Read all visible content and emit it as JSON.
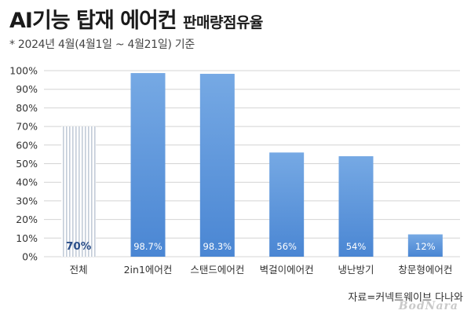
{
  "header": {
    "title_main": "AI기능 탑재 에어컨",
    "title_sub": "판매량점유율",
    "period": "* 2024년 4월(4월1일 ~ 4월21일) 기준"
  },
  "source": "자료=커넥트웨이브 다나와",
  "watermark": "BodNara",
  "colors": {
    "bar_top": "#76a9e4",
    "bar_bottom": "#4a86d3",
    "total_bar_stripe": "#c3ccd8",
    "total_label": "#2b4f8a",
    "grid": "#d4d4d4",
    "axis_text": "#333333"
  },
  "chart_data": {
    "type": "bar",
    "title": "AI기능 탑재 에어컨 판매량점유율",
    "categories": [
      "전체",
      "2in1에어컨",
      "스탠드에어컨",
      "벽걸이에어컨",
      "냉난방기",
      "창문형에어컨"
    ],
    "values": [
      70,
      98.7,
      98.3,
      56,
      54,
      12
    ],
    "value_labels": [
      "70%",
      "98.7%",
      "98.3%",
      "56%",
      "54%",
      "12%"
    ],
    "yticks": [
      "0%",
      "10%",
      "20%",
      "30%",
      "40%",
      "50%",
      "60%",
      "70%",
      "80%",
      "90%",
      "100%"
    ],
    "ylim": [
      0,
      100
    ],
    "grid": true,
    "legend": "none",
    "xlabel": "",
    "ylabel": ""
  }
}
